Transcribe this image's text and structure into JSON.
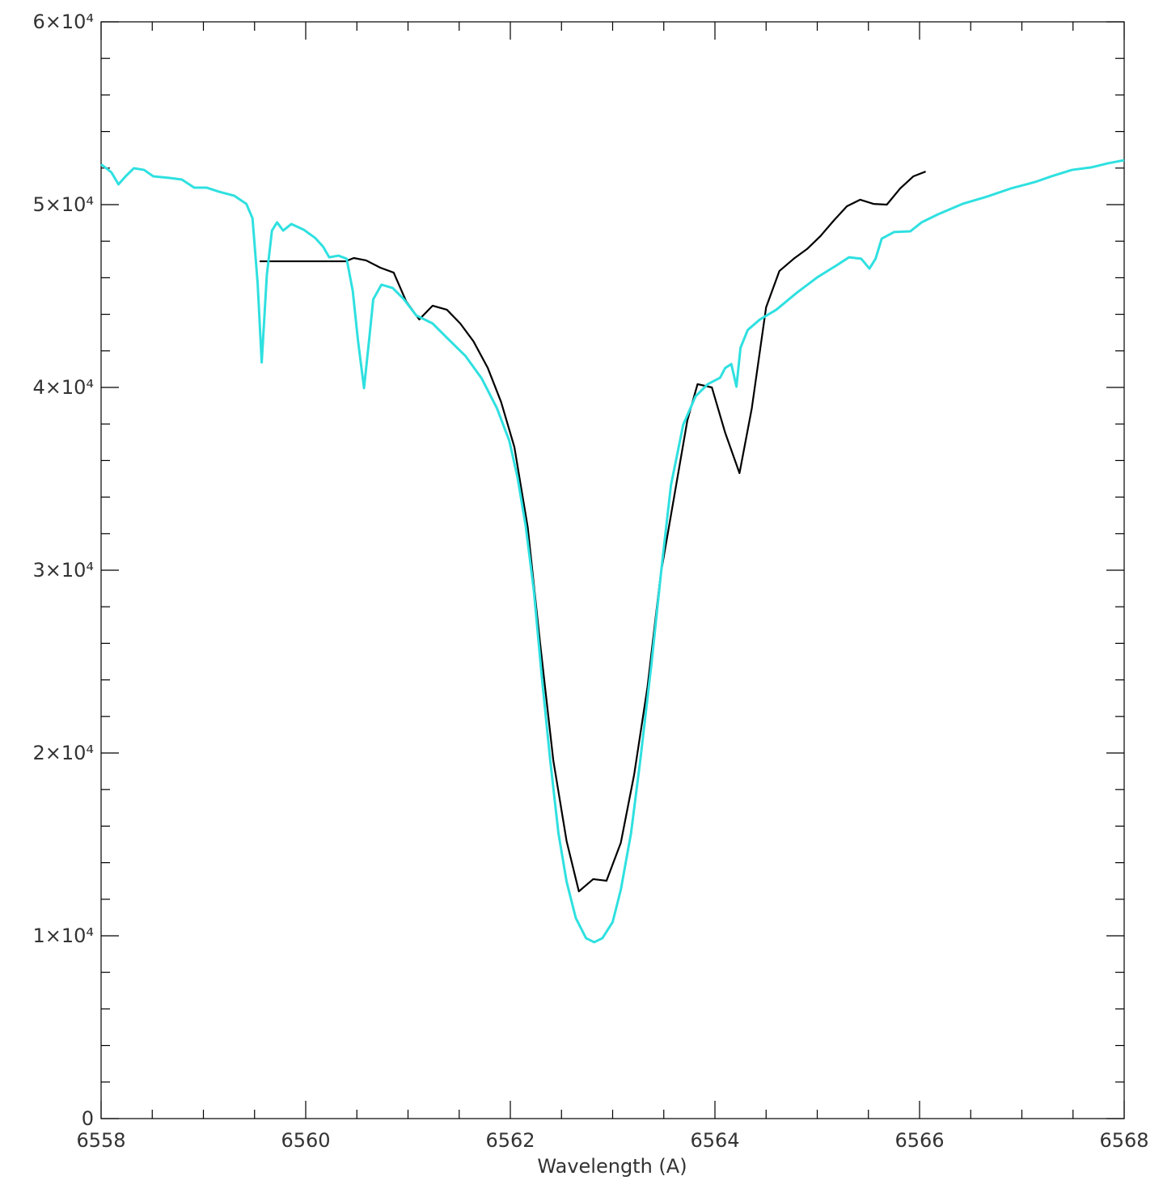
{
  "chart_data": {
    "type": "line",
    "x_label": "Wavelength (A)",
    "xlim": [
      6558,
      6568
    ],
    "xticks": [
      6558,
      6560,
      6562,
      6564,
      6566,
      6568
    ],
    "xticks_minor": [
      6558.5,
      6559,
      6559.5,
      6560.5,
      6561,
      6561.5,
      6562.5,
      6563,
      6563.5,
      6564.5,
      6565,
      6565.5,
      6566.5,
      6567,
      6567.5
    ],
    "ylim": [
      0,
      60000
    ],
    "yticks": [
      0,
      {
        "value": 10000,
        "label": "1×10⁴"
      },
      {
        "value": 20000,
        "label": "2×10⁴"
      },
      {
        "value": 30000,
        "label": "3×10⁴"
      },
      {
        "value": 40000,
        "label": "4×10⁴"
      },
      {
        "value": 50000,
        "label": "5×10⁴"
      },
      {
        "value": 60000,
        "label": "6×10⁴"
      }
    ],
    "yticks_minor": [
      2000,
      4000,
      6000,
      8000,
      12000,
      14000,
      16000,
      18000,
      22000,
      24000,
      26000,
      28000,
      32000,
      34000,
      36000,
      38000,
      42000,
      44000,
      46000,
      48000,
      52000,
      54000,
      56000,
      58000
    ],
    "series": [
      {
        "color": "#000000",
        "x": [
          6559.55,
          6560.39,
          6560.47,
          6560.59,
          6560.73,
          6560.86,
          6560.98,
          6561.11,
          6561.24,
          6561.38,
          6561.51,
          6561.64,
          6561.78,
          6561.91,
          6562.04,
          6562.17,
          6562.29,
          6562.42,
          6562.55,
          6562.67,
          6562.81,
          6562.94,
          6563.08,
          6563.21,
          6563.34,
          6563.47,
          6563.6,
          6563.73,
          6563.83,
          6563.97,
          6564.1,
          6564.24,
          6564.36,
          6564.5,
          6564.63,
          6564.77,
          6564.9,
          6565.03,
          6565.16,
          6565.29,
          6565.42,
          6565.55,
          6565.68,
          6565.81,
          6565.94,
          6566.06
        ],
        "values": [
          46900,
          46900,
          47080,
          46950,
          46550,
          46280,
          44730,
          43720,
          44470,
          44250,
          43500,
          42520,
          41060,
          39200,
          36730,
          32350,
          26060,
          19600,
          15180,
          12430,
          13100,
          13010,
          15090,
          18810,
          23580,
          29780,
          33980,
          38190,
          40180,
          40000,
          37520,
          35310,
          38850,
          44380,
          46370,
          47040,
          47570,
          48270,
          49120,
          49910,
          50270,
          50040,
          50000,
          50880,
          51550,
          51810
        ]
      },
      {
        "color": "#2fe0e0",
        "x": [
          6558.0,
          6558.1,
          6558.17,
          6558.24,
          6558.32,
          6558.42,
          6558.51,
          6558.67,
          6558.79,
          6558.91,
          6559.03,
          6559.15,
          6559.3,
          6559.42,
          6559.48,
          6559.53,
          6559.57,
          6559.62,
          6559.67,
          6559.72,
          6559.78,
          6559.86,
          6559.98,
          6560.09,
          6560.17,
          6560.23,
          6560.32,
          6560.4,
          6560.46,
          6560.51,
          6560.57,
          6560.62,
          6560.66,
          6560.74,
          6560.85,
          6560.96,
          6561.08,
          6561.24,
          6561.4,
          6561.56,
          6561.72,
          6561.87,
          6561.99,
          6562.07,
          6562.15,
          6562.23,
          6562.31,
          6562.39,
          6562.47,
          6562.55,
          6562.64,
          6562.74,
          6562.82,
          6562.9,
          6563.0,
          6563.08,
          6563.18,
          6563.27,
          6563.38,
          6563.48,
          6563.57,
          6563.69,
          6563.81,
          6563.93,
          6564.05,
          6564.1,
          6564.16,
          6564.21,
          6564.25,
          6564.32,
          6564.44,
          6564.6,
          6564.8,
          6565.0,
          6565.19,
          6565.31,
          6565.43,
          6565.51,
          6565.57,
          6565.63,
          6565.75,
          6565.91,
          6566.02,
          6566.18,
          6566.42,
          6566.66,
          6566.89,
          6567.13,
          6567.29,
          6567.49,
          6567.68,
          6567.84,
          6568.0
        ],
        "values": [
          52210,
          51770,
          51110,
          51550,
          51990,
          51900,
          51550,
          51460,
          51370,
          50930,
          50930,
          50710,
          50490,
          50040,
          49250,
          45710,
          41370,
          46150,
          48580,
          49030,
          48580,
          48940,
          48630,
          48190,
          47700,
          47120,
          47210,
          47040,
          45270,
          42610,
          39960,
          42610,
          44820,
          45620,
          45440,
          44820,
          43940,
          43500,
          42610,
          41730,
          40490,
          38850,
          37080,
          35090,
          32430,
          28890,
          24030,
          19600,
          15620,
          12960,
          10970,
          9870,
          9650,
          9870,
          10750,
          12520,
          15620,
          19600,
          24910,
          30220,
          34650,
          37960,
          39510,
          40180,
          40530,
          41060,
          41280,
          40040,
          42170,
          43140,
          43720,
          44250,
          45180,
          46020,
          46680,
          47120,
          47040,
          46500,
          47040,
          48140,
          48500,
          48540,
          49030,
          49470,
          50040,
          50440,
          50880,
          51240,
          51550,
          51900,
          52040,
          52260,
          52430
        ]
      }
    ]
  }
}
